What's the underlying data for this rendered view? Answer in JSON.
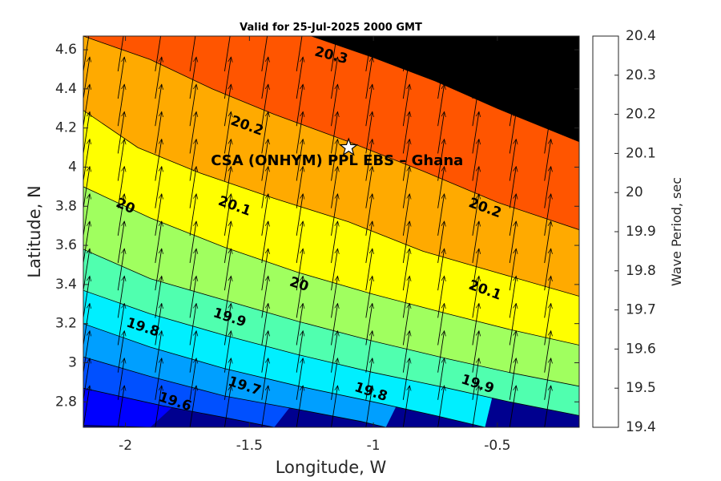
{
  "chart_data": {
    "type": "heatmap",
    "title": "Valid for 25-Jul-2025 2000 GMT",
    "xlabel": "Longitude, W",
    "ylabel": "Latitude, N",
    "xlim": [
      -2.17,
      -0.17
    ],
    "ylim": [
      2.67,
      4.67
    ],
    "xticks": [
      -2,
      -1.5,
      -1,
      -0.5
    ],
    "xtick_labels": [
      "-2",
      "-1.5",
      "-1",
      "-0.5"
    ],
    "yticks": [
      2.8,
      3.0,
      3.2,
      3.4,
      3.6,
      3.8,
      4.0,
      4.2,
      4.4,
      4.6
    ],
    "ytick_labels": [
      "2.8",
      "3",
      "3.2",
      "3.4",
      "3.6",
      "3.8",
      "4",
      "4.2",
      "4.4",
      "4.6"
    ],
    "annotation": {
      "text": "CSA (ONHYM) PPL EBS  – Ghana",
      "x": -1.1,
      "y": 4.1,
      "marker": "star"
    },
    "colorbar": {
      "label": "Wave Period, sec",
      "levels": [
        19.4,
        19.5,
        19.6,
        19.7,
        19.8,
        19.9,
        20.0,
        20.1,
        20.2,
        20.3,
        20.4
      ],
      "tick_labels": [
        "19.4",
        "19.5",
        "19.6",
        "19.7",
        "19.8",
        "19.9",
        "20",
        "20.1",
        "20.2",
        "20.3",
        "20.4"
      ],
      "colors": [
        "#00008f",
        "#0000ff",
        "#0050ff",
        "#009fff",
        "#00efff",
        "#50ffaf",
        "#a0ff5f",
        "#ffff00",
        "#ffaa00",
        "#ff5500"
      ]
    },
    "contours": [
      {
        "value": 19.4,
        "points": [
          [
            -2.17,
            2.68
          ],
          [
            -1.9,
            2.67
          ]
        ]
      },
      {
        "value": 19.5,
        "points": [
          [
            -2.17,
            2.87
          ],
          [
            -1.85,
            2.78
          ],
          [
            -1.6,
            2.72
          ],
          [
            -1.4,
            2.67
          ]
        ]
      },
      {
        "value": 19.6,
        "points": [
          [
            -2.17,
            3.03
          ],
          [
            -1.9,
            2.93
          ],
          [
            -1.6,
            2.83
          ],
          [
            -1.3,
            2.76
          ],
          [
            -1.05,
            2.7
          ],
          [
            -0.95,
            2.67
          ]
        ]
      },
      {
        "value": 19.7,
        "points": [
          [
            -2.17,
            3.2
          ],
          [
            -1.9,
            3.08
          ],
          [
            -1.6,
            2.97
          ],
          [
            -1.3,
            2.88
          ],
          [
            -1.0,
            2.8
          ],
          [
            -0.75,
            2.73
          ],
          [
            -0.55,
            2.67
          ]
        ]
      },
      {
        "value": 19.8,
        "points": [
          [
            -2.17,
            3.37
          ],
          [
            -1.9,
            3.25
          ],
          [
            -1.6,
            3.14
          ],
          [
            -1.3,
            3.04
          ],
          [
            -1.0,
            2.95
          ],
          [
            -0.7,
            2.87
          ],
          [
            -0.45,
            2.8
          ],
          [
            -0.17,
            2.73
          ]
        ]
      },
      {
        "value": 19.9,
        "points": [
          [
            -2.17,
            3.58
          ],
          [
            -1.9,
            3.43
          ],
          [
            -1.6,
            3.32
          ],
          [
            -1.3,
            3.21
          ],
          [
            -1.0,
            3.11
          ],
          [
            -0.7,
            3.02
          ],
          [
            -0.45,
            2.95
          ],
          [
            -0.17,
            2.88
          ]
        ]
      },
      {
        "value": 20.0,
        "points": [
          [
            -2.17,
            3.9
          ],
          [
            -1.9,
            3.74
          ],
          [
            -1.6,
            3.59
          ],
          [
            -1.3,
            3.46
          ],
          [
            -1.0,
            3.35
          ],
          [
            -0.7,
            3.25
          ],
          [
            -0.45,
            3.17
          ],
          [
            -0.17,
            3.09
          ]
        ]
      },
      {
        "value": 20.1,
        "points": [
          [
            -2.17,
            4.29
          ],
          [
            -1.95,
            4.1
          ],
          [
            -1.7,
            3.97
          ],
          [
            -1.4,
            3.84
          ],
          [
            -1.1,
            3.72
          ],
          [
            -0.8,
            3.57
          ],
          [
            -0.5,
            3.46
          ],
          [
            -0.17,
            3.34
          ]
        ]
      },
      {
        "value": 20.2,
        "points": [
          [
            -2.17,
            4.67
          ],
          [
            -1.9,
            4.55
          ],
          [
            -1.65,
            4.4
          ],
          [
            -1.4,
            4.27
          ],
          [
            -1.1,
            4.13
          ],
          [
            -0.8,
            3.98
          ],
          [
            -0.5,
            3.82
          ],
          [
            -0.17,
            3.68
          ]
        ]
      },
      {
        "value": 20.3,
        "points": [
          [
            -1.25,
            4.67
          ],
          [
            -1.0,
            4.56
          ],
          [
            -0.75,
            4.44
          ],
          [
            -0.5,
            4.3
          ],
          [
            -0.17,
            4.13
          ]
        ]
      }
    ],
    "contour_labels": [
      {
        "text": "20.3",
        "x": -1.17,
        "y": 4.57,
        "rotate": 14
      },
      {
        "text": "20.2",
        "x": -1.51,
        "y": 4.21,
        "rotate": 20
      },
      {
        "text": "20",
        "x": -2.0,
        "y": 3.8,
        "rotate": 24
      },
      {
        "text": "20.1",
        "x": -1.56,
        "y": 3.8,
        "rotate": 20
      },
      {
        "text": "20.2",
        "x": -0.55,
        "y": 3.79,
        "rotate": 20
      },
      {
        "text": "20",
        "x": -1.3,
        "y": 3.4,
        "rotate": 18
      },
      {
        "text": "20.1",
        "x": -0.55,
        "y": 3.37,
        "rotate": 20
      },
      {
        "text": "19.8",
        "x": -1.93,
        "y": 3.18,
        "rotate": 18
      },
      {
        "text": "19.9",
        "x": -1.58,
        "y": 3.23,
        "rotate": 18
      },
      {
        "text": "19.7",
        "x": -1.52,
        "y": 2.88,
        "rotate": 18
      },
      {
        "text": "19.6",
        "x": -1.8,
        "y": 2.8,
        "rotate": 18
      },
      {
        "text": "19.8",
        "x": -1.01,
        "y": 2.85,
        "rotate": 18
      },
      {
        "text": "19.9",
        "x": -0.58,
        "y": 2.89,
        "rotate": 18
      }
    ],
    "vectors": {
      "x": [
        -2.17,
        -2.03,
        -1.88,
        -1.74,
        -1.6,
        -1.45,
        -1.31,
        -1.17,
        -1.03,
        -0.88,
        -0.74,
        -0.6,
        -0.45,
        -0.31
      ],
      "y": [
        2.67,
        2.81,
        2.95,
        3.09,
        3.23,
        3.37,
        3.51,
        3.65,
        3.79,
        3.93,
        4.07,
        4.21,
        4.35,
        4.49
      ],
      "direction": "toward north-northeast"
    }
  }
}
